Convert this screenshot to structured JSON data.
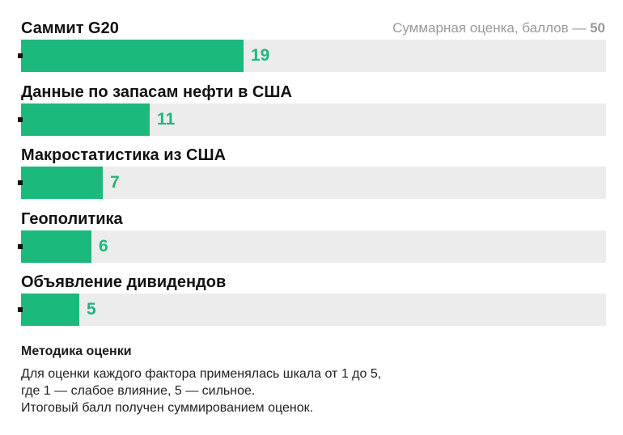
{
  "chart_data": {
    "type": "bar",
    "orientation": "horizontal",
    "categories": [
      "Саммит G20",
      "Данные по запасам нефти в США",
      "Макростатистика из США",
      "Геополитика",
      "Объявление дивидендов"
    ],
    "values": [
      19,
      11,
      7,
      6,
      5
    ],
    "xlim": [
      0,
      50
    ],
    "max_label_prefix": "Суммарная оценка, баллов —",
    "max_label_value": "50",
    "bar_color": "#1cb97c",
    "track_color": "#ececec",
    "value_label_color": "#1cb97c"
  },
  "methodology": {
    "title": "Методика оценки",
    "lines": [
      "Для оценки каждого фактора применялась шкала от 1 до 5,",
      "где 1 — слабое влияние, 5 — сильное.",
      "Итоговый балл получен суммированием оценок."
    ]
  }
}
